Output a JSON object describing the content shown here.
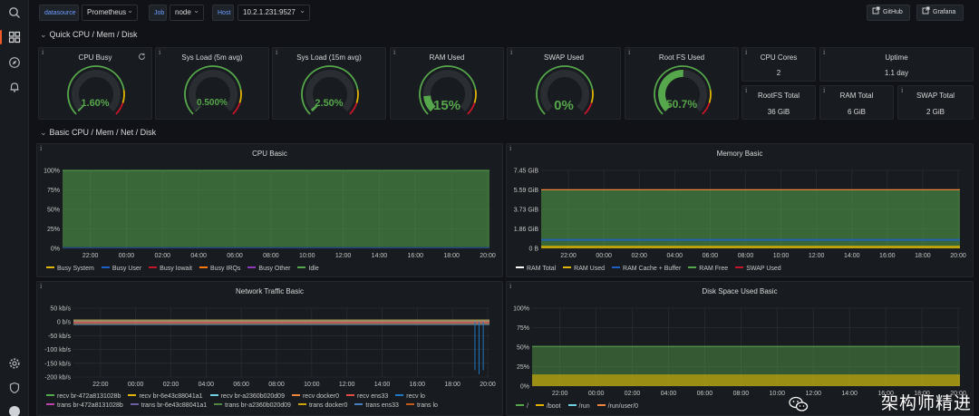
{
  "topbar": {
    "datasource_label": "datasource",
    "datasource_value": "Prometheus",
    "job_label": "Job",
    "job_value": "node",
    "host_label": "Host",
    "host_value": "10.2.1.231:9527",
    "github_label": "GitHub",
    "grafana_label": "Grafana"
  },
  "rows": {
    "quick": "Quick CPU / Mem / Disk",
    "basic": "Basic CPU / Mem / Net / Disk"
  },
  "gauges": [
    {
      "title": "CPU Busy",
      "value": "1.60%",
      "fraction": 0.016
    },
    {
      "title": "Sys Load (5m avg)",
      "value": "0.500%",
      "fraction": 0.005
    },
    {
      "title": "Sys Load (15m avg)",
      "value": "2.50%",
      "fraction": 0.025
    },
    {
      "title": "RAM Used",
      "value": "15%",
      "fraction": 0.15
    },
    {
      "title": "SWAP Used",
      "value": "0%",
      "fraction": 0.0
    },
    {
      "title": "Root FS Used",
      "value": "50.7%",
      "fraction": 0.507
    }
  ],
  "stats": [
    {
      "title": "CPU Cores",
      "value": "2"
    },
    {
      "title": "Uptime",
      "value": "1.1 day"
    },
    {
      "title": "RootFS Total",
      "value": "36 GiB"
    },
    {
      "title": "RAM Total",
      "value": "6 GiB"
    },
    {
      "title": "SWAP Total",
      "value": "2 GiB"
    }
  ],
  "colors": {
    "green": "#56a64b",
    "yellow": "#e0b400",
    "red": "#c4162a",
    "bg": "#111217",
    "panel": "#181b1f"
  },
  "chart_data": [
    {
      "type": "area",
      "title": "CPU Basic",
      "x_ticks": [
        "22:00",
        "00:00",
        "02:00",
        "04:00",
        "06:00",
        "08:00",
        "10:00",
        "12:00",
        "14:00",
        "16:00",
        "18:00",
        "20:00"
      ],
      "y_ticks": [
        "100%",
        "75%",
        "50%",
        "25%",
        "0%"
      ],
      "ylim": [
        0,
        100
      ],
      "series": [
        {
          "name": "Busy System",
          "color": "#e0b400",
          "values": [
            0.5
          ]
        },
        {
          "name": "Busy User",
          "color": "#1f60c4",
          "values": [
            1
          ]
        },
        {
          "name": "Busy Iowait",
          "color": "#c4162a",
          "values": [
            0
          ]
        },
        {
          "name": "Busy IRQs",
          "color": "#ff780a",
          "values": [
            0
          ]
        },
        {
          "name": "Busy Other",
          "color": "#8f3bb8",
          "values": [
            0
          ]
        },
        {
          "name": "Idle",
          "color": "#56a64b",
          "values": [
            98.5
          ]
        }
      ],
      "grid": true,
      "legend": "bottom"
    },
    {
      "type": "area",
      "title": "Memory Basic",
      "x_ticks": [
        "22:00",
        "00:00",
        "02:00",
        "04:00",
        "06:00",
        "08:00",
        "10:00",
        "12:00",
        "14:00",
        "16:00",
        "18:00",
        "20:00"
      ],
      "y_ticks": [
        "7.45 GiB",
        "5.59 GiB",
        "3.73 GiB",
        "1.86 GiB",
        "0 B"
      ],
      "ylim": [
        0,
        7.45
      ],
      "series": [
        {
          "name": "RAM Total",
          "color": "#ffffff",
          "values": [
            5.6
          ]
        },
        {
          "name": "RAM Used",
          "color": "#e0b400",
          "values": [
            0.2
          ]
        },
        {
          "name": "RAM Cache + Buffer",
          "color": "#1f60c4",
          "values": [
            0.6
          ]
        },
        {
          "name": "RAM Free",
          "color": "#56a64b",
          "values": [
            4.8
          ]
        },
        {
          "name": "SWAP Used",
          "color": "#c4162a",
          "values": [
            0
          ]
        }
      ],
      "grid": true,
      "legend": "bottom"
    },
    {
      "type": "line",
      "title": "Network Traffic Basic",
      "x_ticks": [
        "22:00",
        "00:00",
        "02:00",
        "04:00",
        "06:00",
        "08:00",
        "10:00",
        "12:00",
        "14:00",
        "16:00",
        "18:00",
        "20:00"
      ],
      "y_ticks": [
        "50 kb/s",
        "0 b/s",
        "-50 kb/s",
        "-100 kb/s",
        "-150 kb/s",
        "-200 kb/s"
      ],
      "ylim": [
        -200,
        50
      ],
      "series": [
        {
          "name": "recv br-472a8131028b",
          "color": "#56a64b"
        },
        {
          "name": "recv br-6e43c88041a1",
          "color": "#e0b400"
        },
        {
          "name": "recv br-a2360b020d09",
          "color": "#6ed0e0"
        },
        {
          "name": "recv docker0",
          "color": "#ef843c"
        },
        {
          "name": "recv ens33",
          "color": "#e24d42"
        },
        {
          "name": "recv lo",
          "color": "#1f78c1"
        },
        {
          "name": "trans br-472a8131028b",
          "color": "#ba43a9"
        },
        {
          "name": "trans br-6e43c88041a1",
          "color": "#705da0"
        },
        {
          "name": "trans br-a2360b020d09",
          "color": "#508642"
        },
        {
          "name": "trans docker0",
          "color": "#cca300"
        },
        {
          "name": "trans ens33",
          "color": "#447ebc"
        },
        {
          "name": "trans lo",
          "color": "#c15c17"
        }
      ],
      "grid": true,
      "legend": "bottom"
    },
    {
      "type": "area",
      "title": "Disk Space Used Basic",
      "x_ticks": [
        "22:00",
        "00:00",
        "02:00",
        "04:00",
        "06:00",
        "08:00",
        "10:00",
        "12:00",
        "14:00",
        "16:00",
        "18:00",
        "20:00"
      ],
      "y_ticks": [
        "100%",
        "75%",
        "50%",
        "25%",
        "0%"
      ],
      "ylim": [
        0,
        100
      ],
      "series": [
        {
          "name": "/",
          "color": "#56a64b",
          "values": [
            51
          ]
        },
        {
          "name": "/boot",
          "color": "#e0b400",
          "values": [
            15
          ]
        },
        {
          "name": "/run",
          "color": "#6ed0e0",
          "values": [
            0
          ]
        },
        {
          "name": "/run/user/0",
          "color": "#ef843c",
          "values": [
            0
          ]
        }
      ],
      "grid": true,
      "legend": "bottom"
    }
  ],
  "watermark": "架构师精进"
}
